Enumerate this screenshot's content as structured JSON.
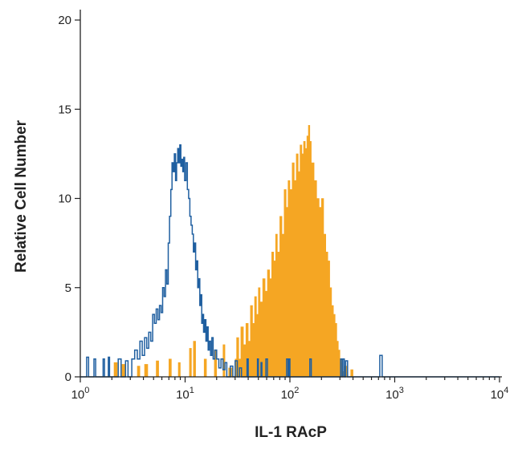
{
  "chart_data": {
    "type": "histogram",
    "title": "",
    "xlabel": "IL-1 RAcP",
    "ylabel": "Relative Cell Number",
    "x_scale": "log",
    "xlim": [
      1,
      10000
    ],
    "ylim": [
      0,
      20
    ],
    "grid": false,
    "legend": "none",
    "x_ticks": [
      {
        "value": 1,
        "base": "10",
        "exp": "0"
      },
      {
        "value": 10,
        "base": "10",
        "exp": "1"
      },
      {
        "value": 100,
        "base": "10",
        "exp": "2"
      },
      {
        "value": 1000,
        "base": "10",
        "exp": "3"
      },
      {
        "value": 10000,
        "base": "10",
        "exp": "4"
      }
    ],
    "y_ticks": [
      {
        "value": 0,
        "label": "0"
      },
      {
        "value": 5,
        "label": "5"
      },
      {
        "value": 10,
        "label": "10"
      },
      {
        "value": 15,
        "label": "15"
      },
      {
        "value": 20,
        "label": "20"
      }
    ],
    "series": [
      {
        "style": "filled",
        "color": "#f5a623",
        "points": [
          [
            1.0,
            0
          ],
          [
            2.0,
            0
          ],
          [
            2.1,
            0.8
          ],
          [
            2.25,
            0
          ],
          [
            2.5,
            0.7
          ],
          [
            2.7,
            0
          ],
          [
            3.2,
            0
          ],
          [
            3.5,
            0.6
          ],
          [
            3.7,
            0
          ],
          [
            4.1,
            0.7
          ],
          [
            4.4,
            0
          ],
          [
            5.0,
            0
          ],
          [
            5.3,
            0.9
          ],
          [
            5.6,
            0
          ],
          [
            6.6,
            0
          ],
          [
            7.0,
            1.0
          ],
          [
            7.4,
            0
          ],
          [
            8.2,
            0
          ],
          [
            8.6,
            0.8
          ],
          [
            9.0,
            0
          ],
          [
            10.5,
            0
          ],
          [
            11.0,
            1.6
          ],
          [
            11.5,
            0
          ],
          [
            12.0,
            2.0
          ],
          [
            12.6,
            0
          ],
          [
            14.5,
            0
          ],
          [
            15.2,
            1.0
          ],
          [
            16.0,
            0
          ],
          [
            18.0,
            0
          ],
          [
            19.0,
            1.5
          ],
          [
            20.0,
            0
          ],
          [
            22.0,
            0
          ],
          [
            23.0,
            1.8
          ],
          [
            24.0,
            0
          ],
          [
            26.0,
            0.5
          ],
          [
            28.0,
            0
          ],
          [
            30.0,
            1.0
          ],
          [
            31.0,
            2.2
          ],
          [
            32.5,
            1.0
          ],
          [
            34.0,
            2.8
          ],
          [
            36.0,
            1.8
          ],
          [
            38.0,
            3.0
          ],
          [
            40.0,
            2.0
          ],
          [
            42.0,
            4.0
          ],
          [
            44.0,
            3.0
          ],
          [
            46.0,
            4.5
          ],
          [
            48.0,
            3.5
          ],
          [
            50.0,
            5.0
          ],
          [
            52.0,
            4.2
          ],
          [
            55.0,
            5.5
          ],
          [
            58.0,
            4.8
          ],
          [
            61.0,
            6.0
          ],
          [
            64.0,
            5.5
          ],
          [
            67.0,
            7.0
          ],
          [
            70.0,
            6.5
          ],
          [
            73.0,
            8.0
          ],
          [
            76.0,
            7.0
          ],
          [
            80.0,
            9.0
          ],
          [
            84.0,
            8.0
          ],
          [
            88.0,
            10.5
          ],
          [
            92.0,
            9.5
          ],
          [
            96.0,
            11.0
          ],
          [
            100.0,
            10.5
          ],
          [
            105.0,
            12.0
          ],
          [
            110.0,
            11.0
          ],
          [
            115.0,
            12.5
          ],
          [
            120.0,
            11.5
          ],
          [
            125.0,
            13.0
          ],
          [
            130.0,
            12.5
          ],
          [
            135.0,
            13.2
          ],
          [
            140.0,
            12.8
          ],
          [
            145.0,
            13.5
          ],
          [
            150.0,
            14.1
          ],
          [
            155.0,
            13.2
          ],
          [
            160.0,
            12.0
          ],
          [
            170.0,
            11.0
          ],
          [
            180.0,
            10.0
          ],
          [
            190.0,
            9.5
          ],
          [
            200.0,
            10.0
          ],
          [
            210.0,
            8.0
          ],
          [
            220.0,
            7.0
          ],
          [
            230.0,
            6.5
          ],
          [
            240.0,
            5.0
          ],
          [
            250.0,
            4.0
          ],
          [
            260.0,
            3.5
          ],
          [
            270.0,
            3.0
          ],
          [
            280.0,
            2.0
          ],
          [
            290.0,
            1.5
          ],
          [
            300.0,
            1.0
          ],
          [
            310.0,
            0.8
          ],
          [
            320.0,
            0.3
          ],
          [
            330.0,
            0.6
          ],
          [
            350.0,
            0
          ],
          [
            380.0,
            0.4
          ],
          [
            400.0,
            0
          ],
          [
            10000.0,
            0
          ]
        ]
      },
      {
        "style": "outline",
        "color": "#1f5fa0",
        "points": [
          [
            1.0,
            0
          ],
          [
            1.1,
            0
          ],
          [
            1.15,
            1.1
          ],
          [
            1.2,
            0
          ],
          [
            1.3,
            0
          ],
          [
            1.35,
            1.0
          ],
          [
            1.4,
            0
          ],
          [
            1.6,
            0
          ],
          [
            1.65,
            1.0
          ],
          [
            1.7,
            0
          ],
          [
            1.85,
            1.1
          ],
          [
            1.9,
            0
          ],
          [
            2.2,
            0
          ],
          [
            2.3,
            1.0
          ],
          [
            2.45,
            0
          ],
          [
            2.7,
            0.9
          ],
          [
            2.85,
            0
          ],
          [
            3.0,
            0
          ],
          [
            3.1,
            1.0
          ],
          [
            3.3,
            1.5
          ],
          [
            3.5,
            1.0
          ],
          [
            3.7,
            2.0
          ],
          [
            3.9,
            1.2
          ],
          [
            4.1,
            2.2
          ],
          [
            4.3,
            1.6
          ],
          [
            4.5,
            2.5
          ],
          [
            4.7,
            2.0
          ],
          [
            4.9,
            3.5
          ],
          [
            5.1,
            3.0
          ],
          [
            5.3,
            3.8
          ],
          [
            5.5,
            3.2
          ],
          [
            5.7,
            4.0
          ],
          [
            5.9,
            3.6
          ],
          [
            6.1,
            5.0
          ],
          [
            6.3,
            4.5
          ],
          [
            6.5,
            6.0
          ],
          [
            6.7,
            5.2
          ],
          [
            6.9,
            7.5
          ],
          [
            7.1,
            9.0
          ],
          [
            7.3,
            10.5
          ],
          [
            7.5,
            12.0
          ],
          [
            7.7,
            11.5
          ],
          [
            7.9,
            12.5
          ],
          [
            8.1,
            11.0
          ],
          [
            8.3,
            12.0
          ],
          [
            8.5,
            12.8
          ],
          [
            8.7,
            12.0
          ],
          [
            8.9,
            13.0
          ],
          [
            9.1,
            11.8
          ],
          [
            9.3,
            12.2
          ],
          [
            9.5,
            11.5
          ],
          [
            9.7,
            12.3
          ],
          [
            9.9,
            11.0
          ],
          [
            10.2,
            12.0
          ],
          [
            10.5,
            10.5
          ],
          [
            10.8,
            10.0
          ],
          [
            11.1,
            9.0
          ],
          [
            11.4,
            8.5
          ],
          [
            11.7,
            8.0
          ],
          [
            12.0,
            7.0
          ],
          [
            12.3,
            7.5
          ],
          [
            12.6,
            6.0
          ],
          [
            12.9,
            6.5
          ],
          [
            13.2,
            5.0
          ],
          [
            13.5,
            5.5
          ],
          [
            13.8,
            4.0
          ],
          [
            14.1,
            4.6
          ],
          [
            14.4,
            3.0
          ],
          [
            14.7,
            3.5
          ],
          [
            15.0,
            2.5
          ],
          [
            15.4,
            3.2
          ],
          [
            15.8,
            2.0
          ],
          [
            16.2,
            2.8
          ],
          [
            16.6,
            1.5
          ],
          [
            17.0,
            2.0
          ],
          [
            17.5,
            1.2
          ],
          [
            18.0,
            2.2
          ],
          [
            18.5,
            1.0
          ],
          [
            19.2,
            1.5
          ],
          [
            20.0,
            1.0
          ],
          [
            21.0,
            0.5
          ],
          [
            22.0,
            1.0
          ],
          [
            23.0,
            0.4
          ],
          [
            24.0,
            0.8
          ],
          [
            25.0,
            0
          ],
          [
            27.0,
            0.6
          ],
          [
            28.5,
            0
          ],
          [
            30.0,
            0.9
          ],
          [
            31.5,
            0
          ],
          [
            33.0,
            0.5
          ],
          [
            34.5,
            0
          ],
          [
            38.0,
            0
          ],
          [
            39.0,
            1.0
          ],
          [
            40.0,
            0
          ],
          [
            48.0,
            0
          ],
          [
            49.0,
            1.0
          ],
          [
            50.0,
            0
          ],
          [
            52.0,
            0
          ],
          [
            53.0,
            0.8
          ],
          [
            54.0,
            0
          ],
          [
            57.0,
            0
          ],
          [
            59.0,
            1.0
          ],
          [
            61.0,
            0
          ],
          [
            90.0,
            0
          ],
          [
            93.0,
            1.0
          ],
          [
            96.0,
            0
          ],
          [
            98.0,
            1.0
          ],
          [
            100.0,
            0
          ],
          [
            150.0,
            0
          ],
          [
            155.0,
            1.0
          ],
          [
            160.0,
            0
          ],
          [
            300.0,
            0
          ],
          [
            305.0,
            1.0
          ],
          [
            315.0,
            0
          ],
          [
            320.0,
            1.0
          ],
          [
            330.0,
            0
          ],
          [
            340.0,
            0.9
          ],
          [
            355.0,
            0
          ],
          [
            700.0,
            0
          ],
          [
            720.0,
            1.2
          ],
          [
            740.0,
            1.2
          ],
          [
            760.0,
            0
          ],
          [
            10000.0,
            0
          ]
        ]
      }
    ]
  }
}
